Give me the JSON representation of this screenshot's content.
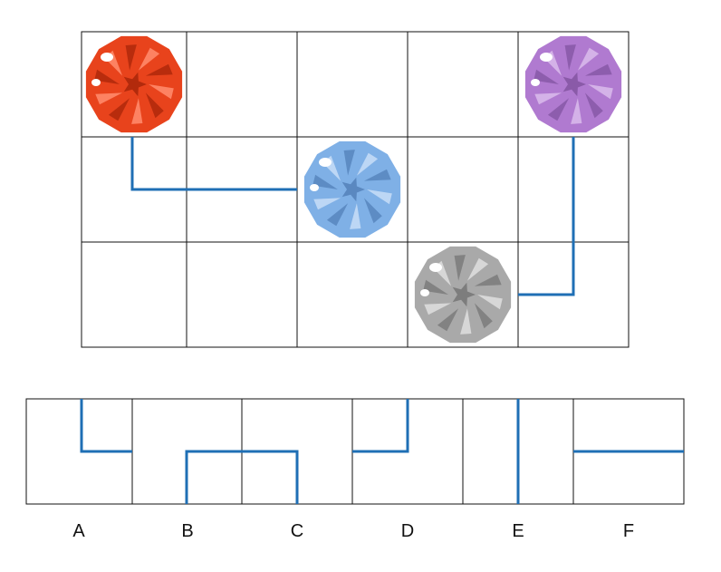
{
  "board": {
    "rows": 3,
    "cols": 5,
    "gems": [
      {
        "color": "red",
        "row": 0,
        "col": 0,
        "fill": "#e8431c",
        "light": "#ff8a6a",
        "dark": "#b22a0c"
      },
      {
        "color": "purple",
        "row": 0,
        "col": 4,
        "fill": "#b07ad0",
        "light": "#d8b8ea",
        "dark": "#8a5aa8"
      },
      {
        "color": "blue",
        "row": 1,
        "col": 2,
        "fill": "#7fb0e6",
        "light": "#c4dcf6",
        "dark": "#5a88c0"
      },
      {
        "color": "gray",
        "row": 2,
        "col": 3,
        "fill": "#a9a9a9",
        "light": "#dcdcdc",
        "dark": "#7d7d7d"
      }
    ],
    "path_color": "#1f6fb5"
  },
  "choices": {
    "labels": [
      "A",
      "B",
      "C",
      "D",
      "E",
      "F"
    ]
  }
}
